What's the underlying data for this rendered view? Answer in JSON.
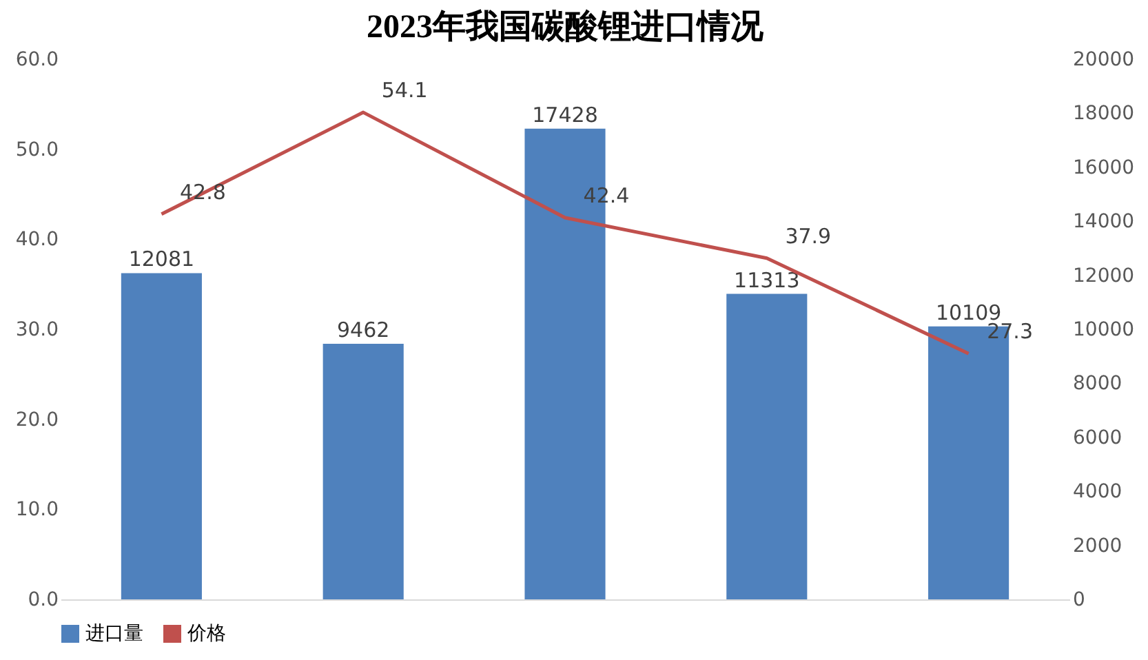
{
  "chart_data": {
    "type": "bar",
    "title": "2023年我国碳酸锂进口情况",
    "categories": [
      null,
      null,
      null,
      null,
      null
    ],
    "series": [
      {
        "name": "进口量",
        "axis": "y2",
        "color": "#4f81bd",
        "values": [
          12081,
          9462,
          17428,
          11313,
          10109
        ]
      },
      {
        "name": "价格",
        "type": "line",
        "axis": "y",
        "color": "#c0504d",
        "values": [
          42.8,
          54.1,
          42.4,
          37.9,
          27.3
        ]
      }
    ],
    "ylim": [
      0,
      60
    ],
    "yticks": [
      {
        "value": 0,
        "label": "0.0"
      },
      {
        "value": 10,
        "label": "10.0"
      },
      {
        "value": 20,
        "label": "20.0"
      },
      {
        "value": 30,
        "label": "30.0"
      },
      {
        "value": 40,
        "label": "40.0"
      },
      {
        "value": 50,
        "label": "50.0"
      },
      {
        "value": 60,
        "label": "60.0"
      }
    ],
    "y2lim": [
      0,
      20000
    ],
    "y2ticks": [
      0,
      2000,
      4000,
      6000,
      8000,
      10000,
      12000,
      14000,
      16000,
      18000,
      20000
    ],
    "data_labels": true,
    "legend": "bottom",
    "marker": "none",
    "grid": false
  }
}
